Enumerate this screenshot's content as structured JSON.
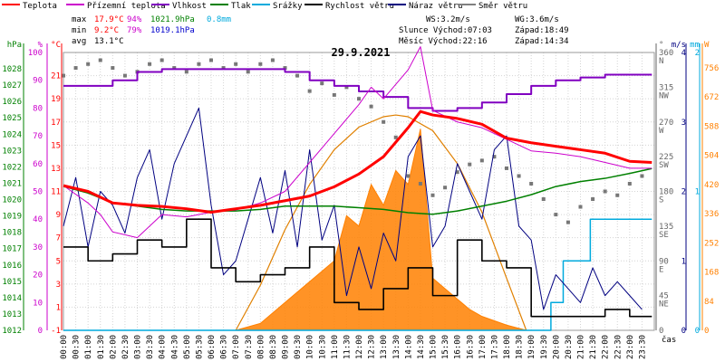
{
  "chart_data": {
    "type": "line",
    "title": "29.9.2021",
    "x_label": "čas",
    "x_ticks": [
      "00:00",
      "00:30",
      "01:00",
      "01:30",
      "02:00",
      "02:30",
      "03:00",
      "03:30",
      "04:00",
      "04:30",
      "05:00",
      "05:30",
      "06:00",
      "06:30",
      "07:00",
      "07:30",
      "08:00",
      "08:30",
      "09:00",
      "09:30",
      "10:00",
      "10:30",
      "11:00",
      "11:30",
      "12:00",
      "12:30",
      "13:00",
      "13:30",
      "14:00",
      "14:30",
      "15:00",
      "15:30",
      "16:00",
      "16:30",
      "17:00",
      "17:30",
      "18:00",
      "18:30",
      "19:00",
      "19:30",
      "20:00",
      "20:30",
      "21:00",
      "21:30",
      "22:00",
      "22:30",
      "23:00",
      "23:30"
    ],
    "axes": {
      "hpa": {
        "label": "hPa",
        "color": "#008000",
        "range": [
          1012,
          1029
        ],
        "ticks": [
          "1028",
          "1027",
          "1026",
          "1025",
          "1024",
          "1023",
          "1022",
          "1021",
          "1020",
          "1019",
          "1018",
          "1017",
          "1016",
          "1015",
          "1014",
          "1013",
          "1012"
        ]
      },
      "pct": {
        "label": "%",
        "color": "#cc00cc",
        "range": [
          0,
          100
        ],
        "ticks": [
          "100",
          "90",
          "80",
          "70",
          "60",
          "50",
          "40",
          "30",
          "20",
          "10",
          "0"
        ]
      },
      "temp": {
        "label": "°C",
        "color": "#ff0000",
        "range": [
          -1,
          23
        ],
        "ticks": [
          "21",
          "19",
          "17",
          "15",
          "13",
          "11",
          "9",
          "7",
          "5",
          "3",
          "1",
          "-1"
        ]
      },
      "wdir": {
        "label": "°",
        "color": "#666666",
        "range": [
          0,
          360
        ],
        "ticks": [
          "360",
          "315",
          "270",
          "225",
          "180",
          "135",
          "90",
          "45",
          "0"
        ],
        "dirs": [
          "N",
          "NW",
          "W",
          "SW",
          "S",
          "SE",
          "E",
          "NE",
          ""
        ]
      },
      "wind": {
        "label": "m/s",
        "color": "#000080",
        "range": [
          0,
          4
        ],
        "ticks": [
          "4",
          "3",
          "2",
          "1",
          "0"
        ]
      },
      "rain": {
        "label": "mm",
        "color": "#00aadd",
        "range": [
          0,
          2
        ],
        "ticks": [
          "2",
          "1",
          "0"
        ]
      },
      "solar": {
        "label": "W",
        "color": "#ff8000",
        "range": [
          0,
          800
        ],
        "ticks": [
          "756",
          "672",
          "588",
          "504",
          "420",
          "336",
          "252",
          "168",
          "84",
          "0"
        ]
      }
    },
    "legend": [
      {
        "name": "Teplota",
        "color": "#ff0000"
      },
      {
        "name": "Přízemní teplota",
        "color": "#cc00cc"
      },
      {
        "name": "Vlhkost",
        "color": "#8000c0"
      },
      {
        "name": "Tlak",
        "color": "#008000"
      },
      {
        "name": "Srážky",
        "color": "#00aadd"
      },
      {
        "name": "Rychlost větru",
        "color": "#000000"
      },
      {
        "name": "Náraz větru",
        "color": "#000080"
      },
      {
        "name": "Směr větru",
        "color": "#808080"
      }
    ],
    "stats": [
      {
        "label": "max",
        "temp": "17.9°C",
        "hum": "94%",
        "press": "1021.9hPa",
        "rain": "0.8mm"
      },
      {
        "label": "min",
        "temp": "9.2°C",
        "hum": "79%",
        "press": "1019.1hPa",
        "rain": ""
      },
      {
        "label": "avg",
        "temp": "13.1°C",
        "hum": "",
        "press": "",
        "rain": ""
      }
    ],
    "info": [
      {
        "a": "WS:3.2m/s",
        "b": "WG:3.6m/s"
      },
      {
        "a": "Slunce Východ:07:03",
        "b": "Západ:18:49"
      },
      {
        "a": "Měsíc  Východ:22:16",
        "b": "Západ:14:34"
      }
    ],
    "series": {
      "temperature": {
        "unit": "°C",
        "t": [
          0,
          1,
          2,
          3,
          4,
          5,
          6,
          7,
          8,
          9,
          10,
          11,
          12,
          13,
          14,
          14.5,
          15,
          16,
          17,
          18,
          19,
          20,
          21,
          22,
          23,
          23.9
        ],
        "v": [
          11.5,
          11,
          10,
          9.8,
          9.7,
          9.5,
          9.2,
          9.5,
          9.8,
          10.2,
          10.6,
          11.4,
          12.5,
          14,
          16.5,
          17.9,
          17.6,
          17.3,
          16.8,
          15.6,
          15.2,
          14.9,
          14.6,
          14.3,
          13.6,
          13.5
        ]
      },
      "ground_temperature": {
        "unit": "°C",
        "t": [
          0,
          1,
          1.5,
          2,
          3,
          3.5,
          4,
          5,
          6,
          7,
          8,
          9,
          10,
          11,
          12,
          12.5,
          13,
          14,
          14.5,
          15,
          16,
          17,
          18,
          19,
          20,
          21,
          22,
          23,
          23.9
        ],
        "v": [
          11.5,
          10,
          9,
          7.5,
          7,
          8,
          9,
          8.8,
          9.2,
          9.4,
          10,
          11,
          13.5,
          16,
          18.5,
          20,
          19,
          21.5,
          23.5,
          18,
          17,
          16.5,
          15.5,
          14.5,
          14.3,
          14,
          13.5,
          13,
          13
        ]
      },
      "humidity": {
        "unit": "%",
        "t": [
          0,
          1,
          2,
          3,
          4,
          5,
          6,
          7,
          8,
          9,
          10,
          11,
          12,
          13,
          14,
          15,
          16,
          17,
          18,
          19,
          20,
          21,
          22,
          23,
          23.9
        ],
        "v": [
          88,
          88,
          90,
          93,
          94,
          94,
          94,
          94,
          94,
          93,
          90,
          88,
          86,
          84,
          80,
          79,
          80,
          82,
          85,
          88,
          90,
          91,
          92,
          92,
          92
        ]
      },
      "pressure": {
        "unit": "hPa",
        "t": [
          0,
          1,
          2,
          3,
          4,
          5,
          6,
          7,
          8,
          9,
          10,
          11,
          12,
          13,
          14,
          15,
          16,
          17,
          18,
          19,
          20,
          21,
          22,
          23,
          23.9
        ],
        "v": [
          1020.8,
          1020.4,
          1019.8,
          1019.6,
          1019.4,
          1019.3,
          1019.3,
          1019.3,
          1019.4,
          1019.6,
          1019.6,
          1019.6,
          1019.5,
          1019.4,
          1019.2,
          1019.1,
          1019.3,
          1019.6,
          1019.9,
          1020.3,
          1020.8,
          1021.1,
          1021.3,
          1021.6,
          1021.9
        ]
      },
      "rain": {
        "unit": "mm",
        "t": [
          0,
          19.5,
          19.8,
          20.1,
          20.3,
          21.3,
          21.4,
          22.8,
          23.9
        ],
        "v": [
          0,
          0,
          0.2,
          0.2,
          0.5,
          0.5,
          0.8,
          0.8,
          0.8
        ]
      },
      "solar": {
        "unit": "W",
        "t": [
          7,
          8,
          9,
          10,
          11,
          11.5,
          12,
          12.5,
          13,
          13.5,
          14,
          14.5,
          15,
          15.5,
          16,
          16.5,
          17,
          18,
          18.8
        ],
        "v": [
          0,
          20,
          80,
          140,
          200,
          330,
          300,
          420,
          360,
          460,
          420,
          580,
          150,
          120,
          90,
          60,
          40,
          15,
          0
        ]
      },
      "solar_clear_sky": {
        "unit": "W",
        "t": [
          7,
          8,
          9,
          10,
          11,
          12,
          13,
          13.5,
          14,
          15,
          16,
          17,
          18,
          18.8
        ],
        "v": [
          0,
          130,
          290,
          420,
          520,
          585,
          615,
          620,
          615,
          575,
          480,
          340,
          150,
          0
        ]
      },
      "wind_speed": {
        "unit": "m/s",
        "t": [
          0,
          1,
          2,
          3,
          4,
          5,
          6,
          7,
          8,
          9,
          10,
          11,
          12,
          13,
          14,
          15,
          16,
          17,
          18,
          19,
          20,
          21,
          22,
          23,
          23.9
        ],
        "v": [
          1.2,
          1.0,
          1.1,
          1.3,
          1.2,
          1.6,
          0.9,
          0.7,
          0.8,
          0.9,
          1.2,
          0.4,
          0.3,
          0.6,
          0.9,
          0.5,
          1.3,
          1.0,
          0.9,
          0.2,
          0.2,
          0.2,
          0.3,
          0.2,
          0.2
        ]
      },
      "wind_gust": {
        "unit": "m/s",
        "t": [
          0,
          0.5,
          1,
          1.5,
          2,
          2.5,
          3,
          3.5,
          4,
          4.5,
          5,
          5.5,
          6,
          6.5,
          7,
          7.5,
          8,
          8.5,
          9,
          9.5,
          10,
          10.5,
          11,
          11.5,
          12,
          12.5,
          13,
          13.5,
          14,
          14.5,
          15,
          15.5,
          16,
          16.5,
          17,
          17.5,
          18,
          18.5,
          19,
          19.5,
          20,
          20.5,
          21,
          21.5,
          22,
          22.5,
          23,
          23.5
        ],
        "v": [
          1.5,
          2.2,
          1.2,
          2.0,
          1.8,
          1.4,
          2.2,
          2.6,
          1.6,
          2.4,
          2.8,
          3.2,
          1.8,
          0.8,
          1.0,
          1.6,
          2.2,
          1.4,
          2.3,
          1.2,
          2.6,
          1.3,
          1.8,
          0.5,
          1.2,
          0.6,
          1.4,
          1.0,
          2.5,
          2.8,
          1.2,
          1.5,
          2.4,
          2.0,
          1.6,
          2.6,
          2.8,
          1.5,
          1.3,
          0.3,
          0.8,
          0.6,
          0.4,
          0.9,
          0.5,
          0.7,
          0.5,
          0.3
        ]
      },
      "wind_direction": {
        "unit": "°",
        "t": [
          0,
          0.5,
          1,
          1.5,
          2,
          2.5,
          3,
          3.5,
          4,
          4.5,
          5,
          5.5,
          6,
          6.5,
          7,
          7.5,
          8,
          8.5,
          9,
          9.5,
          10,
          10.5,
          11,
          11.5,
          12,
          12.5,
          13,
          13.5,
          14,
          14.5,
          15,
          15.5,
          16,
          16.5,
          17,
          17.5,
          18,
          18.5,
          19,
          19.5,
          20,
          20.5,
          21,
          21.5,
          22,
          22.5,
          23,
          23.5
        ],
        "v": [
          330,
          340,
          345,
          350,
          340,
          330,
          335,
          345,
          350,
          340,
          335,
          345,
          350,
          340,
          345,
          335,
          345,
          350,
          340,
          330,
          310,
          320,
          305,
          315,
          300,
          290,
          270,
          250,
          200,
          190,
          175,
          185,
          205,
          215,
          220,
          225,
          210,
          200,
          190,
          170,
          150,
          140,
          160,
          170,
          180,
          175,
          190,
          200
        ]
      }
    }
  }
}
